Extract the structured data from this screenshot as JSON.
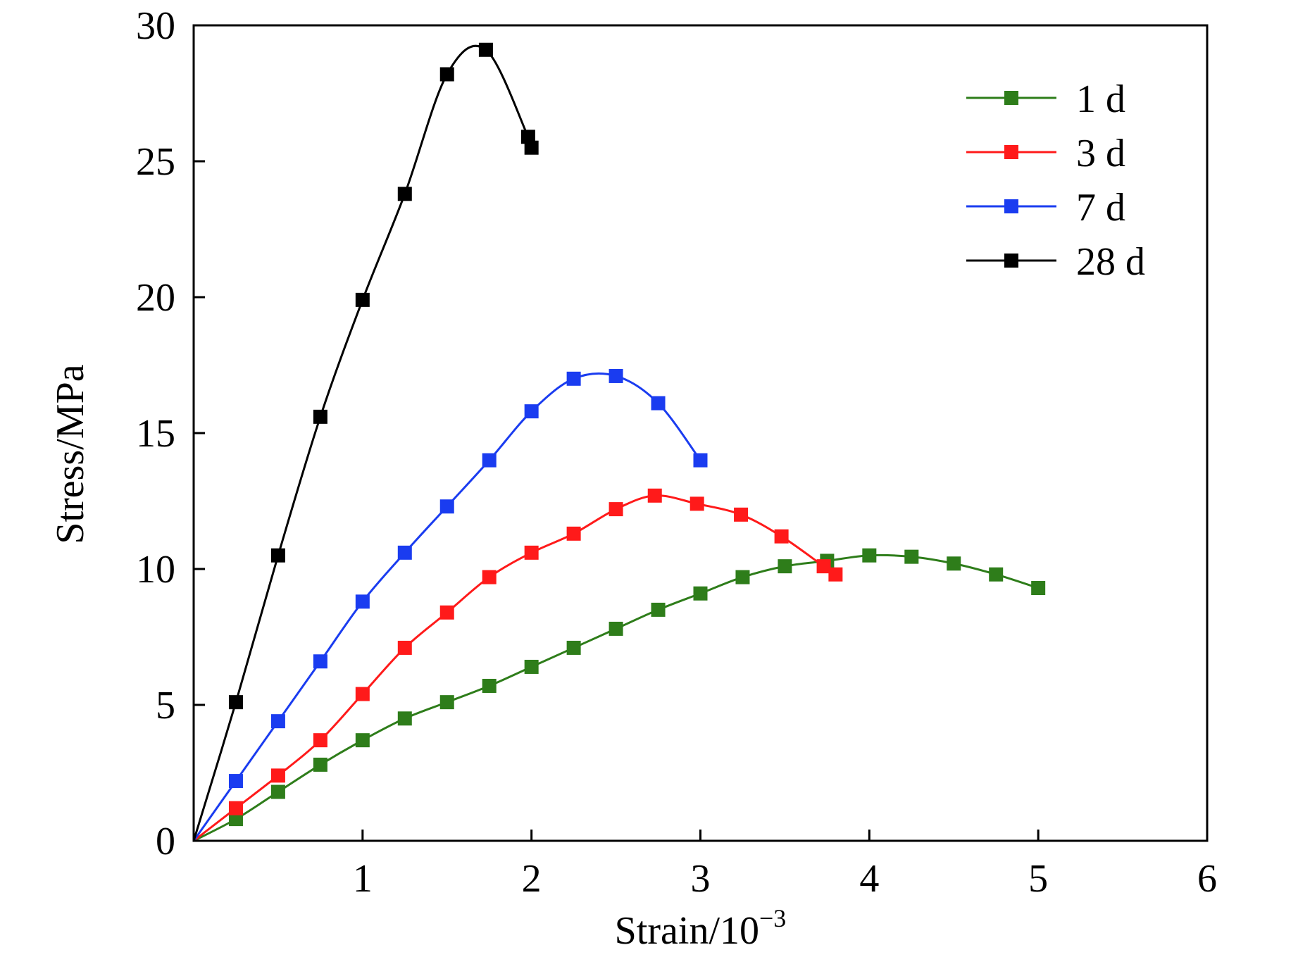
{
  "chart_data": {
    "type": "line",
    "xlabel": "Strain/10",
    "xlabel_exponent": "−3",
    "ylabel": "Stress/MPa",
    "xlim": [
      0,
      6
    ],
    "ylim": [
      0,
      30
    ],
    "x_ticks": [
      1,
      2,
      3,
      4,
      5,
      6
    ],
    "y_ticks": [
      0,
      5,
      10,
      15,
      20,
      25,
      30
    ],
    "grid": false,
    "legend_position": "top-right",
    "series": [
      {
        "name": "1 d",
        "color": "#2e7d1a",
        "x": [
          0,
          0.25,
          0.5,
          0.75,
          1.0,
          1.25,
          1.5,
          1.75,
          2.0,
          2.25,
          2.5,
          2.75,
          3.0,
          3.25,
          3.5,
          3.75,
          4.0,
          4.25,
          4.5,
          4.75,
          5.0
        ],
        "y": [
          0,
          0.8,
          1.8,
          2.8,
          3.7,
          4.5,
          5.1,
          5.7,
          6.4,
          7.1,
          7.8,
          8.5,
          9.1,
          9.7,
          10.1,
          10.3,
          10.5,
          10.45,
          10.2,
          9.8,
          9.3
        ]
      },
      {
        "name": "3 d",
        "color": "#ff1a1a",
        "x": [
          0,
          0.25,
          0.5,
          0.75,
          1.0,
          1.25,
          1.5,
          1.75,
          2.0,
          2.25,
          2.5,
          2.73,
          2.98,
          3.24,
          3.48,
          3.73,
          3.8
        ],
        "y": [
          0,
          1.2,
          2.4,
          3.7,
          5.4,
          7.1,
          8.4,
          9.7,
          10.6,
          11.3,
          12.2,
          12.7,
          12.4,
          12.0,
          11.2,
          10.1,
          9.8
        ]
      },
      {
        "name": "7 d",
        "color": "#1a3cf0",
        "x": [
          0,
          0.25,
          0.5,
          0.75,
          1.0,
          1.25,
          1.5,
          1.75,
          2.0,
          2.25,
          2.5,
          2.75,
          3.0
        ],
        "y": [
          0,
          2.2,
          4.4,
          6.6,
          8.8,
          10.6,
          12.3,
          14.0,
          15.8,
          17.0,
          17.1,
          16.1,
          14.0
        ]
      },
      {
        "name": "28 d",
        "color": "#000000",
        "x": [
          0,
          0.25,
          0.5,
          0.75,
          1.0,
          1.25,
          1.5,
          1.73,
          1.98,
          2.0
        ],
        "y": [
          0,
          5.1,
          10.5,
          15.6,
          19.9,
          23.8,
          28.2,
          29.1,
          25.9,
          25.5
        ]
      }
    ]
  }
}
